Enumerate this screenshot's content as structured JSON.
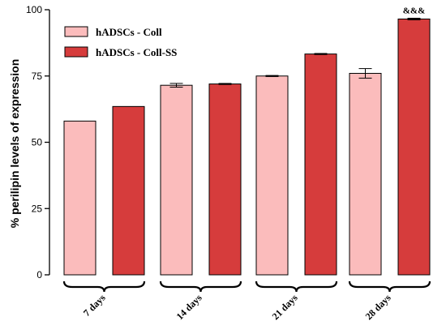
{
  "chart_data": {
    "type": "bar",
    "categories": [
      "7 days",
      "14 days",
      "21 days",
      "28 days"
    ],
    "series": [
      {
        "name": "hADSCs - Coll",
        "color": "#fbbcbc",
        "values": [
          58,
          71.5,
          75,
          76
        ],
        "errors": [
          0,
          0.7,
          0.2,
          1.8
        ]
      },
      {
        "name": "hADSCs - Coll-SS",
        "color": "#d63c3c",
        "values": [
          63.5,
          72,
          83.3,
          96.5
        ],
        "errors": [
          0,
          0.2,
          0.2,
          0.3
        ]
      }
    ],
    "ylabel": "% perilipin levels of expression",
    "ylim": [
      0,
      100
    ],
    "yticks": [
      0,
      25,
      50,
      75,
      100
    ],
    "annotations": [
      {
        "category": "28 days",
        "series": "hADSCs - Coll-SS",
        "text": "&&&"
      }
    ],
    "legend": "top-left",
    "grid": false
  }
}
